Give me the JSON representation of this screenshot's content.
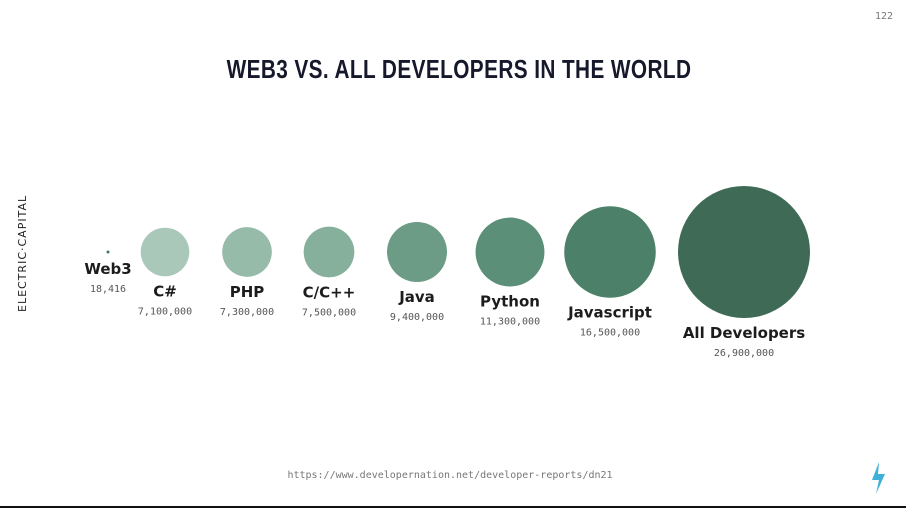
{
  "page_number": "122",
  "brand": "ELECTRIC·CAPITAL",
  "source": "https://www.developernation.net/developer-reports/dn21",
  "chart_data": {
    "type": "bubble",
    "title": "WEB3 VS. ALL DEVELOPERS IN THE WORLD",
    "categories": [
      "Web3",
      "C#",
      "PHP",
      "C/C++",
      "Java",
      "Python",
      "Javascript",
      "All Developers"
    ],
    "values": [
      18416,
      7100000,
      7300000,
      7500000,
      9400000,
      11300000,
      16500000,
      26900000
    ],
    "value_labels": [
      "18,416",
      "7,100,000",
      "7,300,000",
      "7,500,000",
      "9,400,000",
      "11,300,000",
      "16,500,000",
      "26,900,000"
    ],
    "colors": [
      "#3f7a60",
      "#a9c8ba",
      "#96bba9",
      "#86b09c",
      "#6c9c85",
      "#5c8f77",
      "#4d8068",
      "#3f6b56"
    ]
  }
}
